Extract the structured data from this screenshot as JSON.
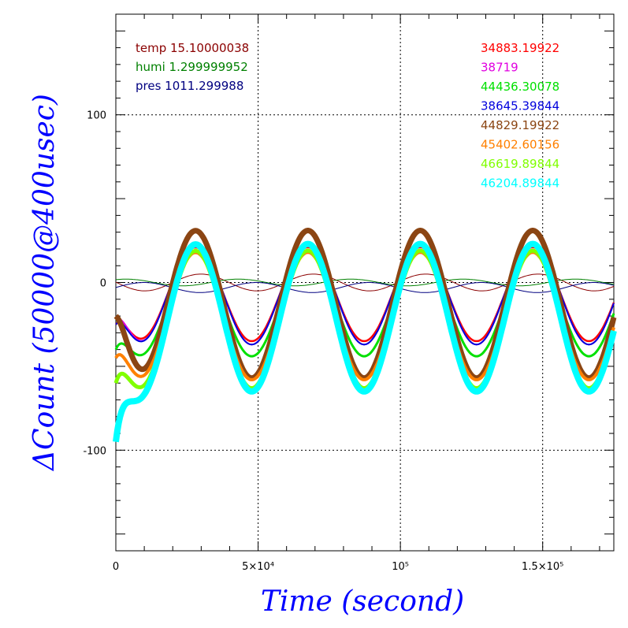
{
  "chart_data": {
    "type": "line",
    "xlabel": "Time (second)",
    "ylabel": "ΔCount (50000@400usec)",
    "xlim": [
      0,
      175000
    ],
    "ylim": [
      -160,
      160
    ],
    "grid": true,
    "axis_color": "#0000ff",
    "x_ticks": [
      {
        "value": 0,
        "label": "0"
      },
      {
        "value": 50000,
        "label": "5×10⁴"
      },
      {
        "value": 100000,
        "label": "10⁵"
      },
      {
        "value": 150000,
        "label": "1.5×10⁵"
      }
    ],
    "y_ticks": [
      {
        "value": 100,
        "label": "100"
      },
      {
        "value": 0,
        "label": "0"
      },
      {
        "value": -100,
        "label": "-100"
      }
    ],
    "period_seconds": 39500,
    "left_legend": [
      {
        "label": "temp 15.10000038",
        "color": "#8b0000"
      },
      {
        "label": "humi 1.299999952",
        "color": "#008000"
      },
      {
        "label": "pres 1011.299988",
        "color": "#000080"
      }
    ],
    "series": [
      {
        "name": "34883.19922",
        "color": "#ff0000",
        "width": 2.5,
        "amplitude": 28,
        "offset": -7,
        "start_value": -25
      },
      {
        "name": "38719",
        "color": "#e000e0",
        "width": 2,
        "amplitude": 30,
        "offset": -7,
        "start_value": -22
      },
      {
        "name": "44436.30078",
        "color": "#00e000",
        "width": 3,
        "amplitude": 31,
        "offset": -13,
        "start_value": -40
      },
      {
        "name": "38645.39844",
        "color": "#0000dd",
        "width": 2,
        "amplitude": 30,
        "offset": -7,
        "start_value": -25
      },
      {
        "name": "44829.19922",
        "color": "#8b4513",
        "width": 7,
        "amplitude": 44,
        "offset": -13,
        "start_value": -20
      },
      {
        "name": "45402.60156",
        "color": "#ff8000",
        "width": 4,
        "amplitude": 38,
        "offset": -20,
        "start_value": -45
      },
      {
        "name": "46619.89844",
        "color": "#80ff00",
        "width": 5,
        "amplitude": 41,
        "offset": -22,
        "start_value": -60
      },
      {
        "name": "46204.89844",
        "color": "#00ffff",
        "width": 8,
        "amplitude": 44,
        "offset": -21,
        "start_value": -95
      }
    ],
    "environment_series": [
      {
        "name": "temp",
        "color": "#8b0000",
        "amplitude": 5,
        "phase": 3.1,
        "offset": 0
      },
      {
        "name": "humi",
        "color": "#008000",
        "amplitude": 2,
        "phase": 1.0,
        "offset": 0
      },
      {
        "name": "pres",
        "color": "#000080",
        "amplitude": 3,
        "phase": 0.0,
        "offset": -3
      }
    ]
  }
}
